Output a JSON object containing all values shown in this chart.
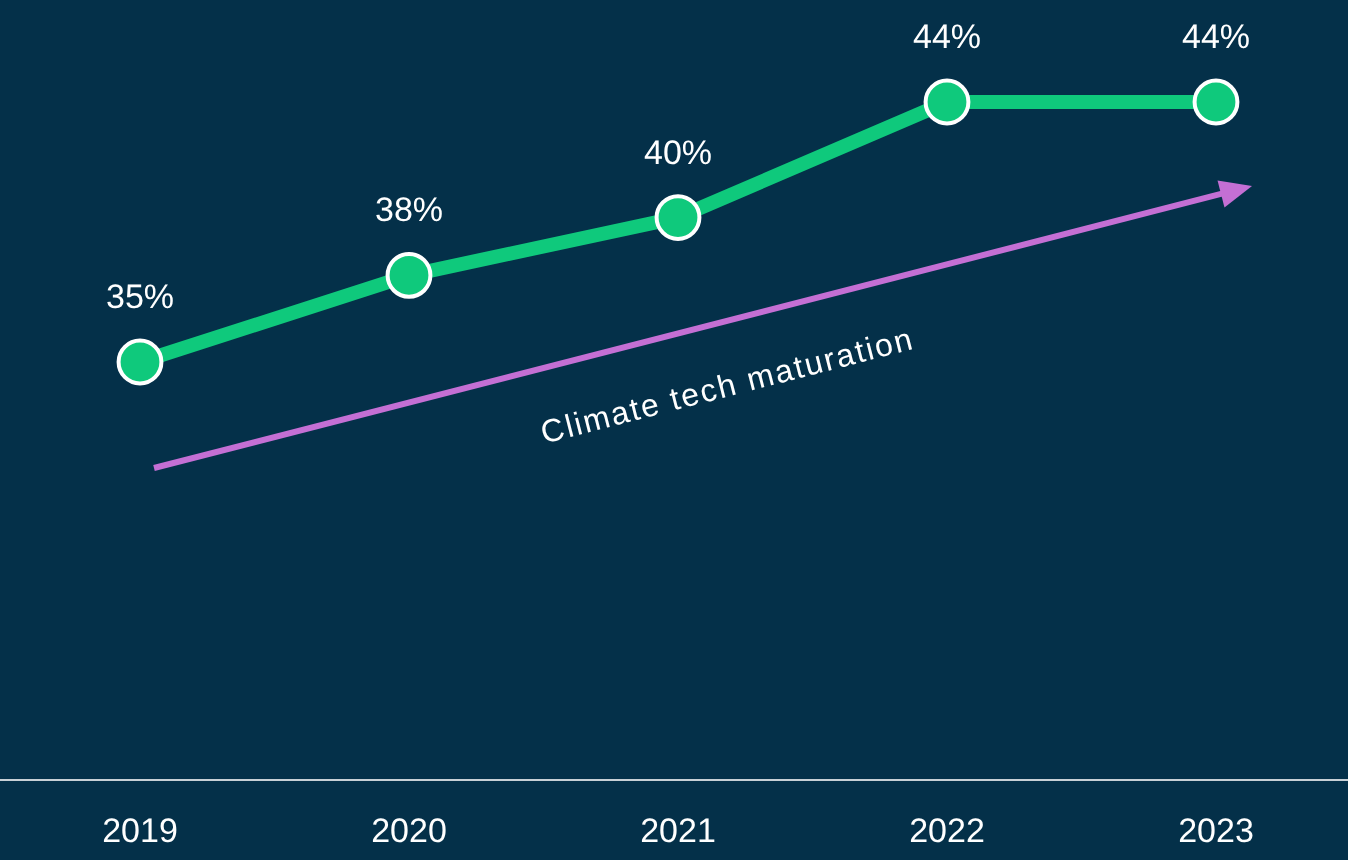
{
  "chart_data": {
    "type": "line",
    "categories": [
      "2019",
      "2020",
      "2021",
      "2022",
      "2023"
    ],
    "series": [
      {
        "color": "#0fc97c",
        "values": [
          35,
          38,
          40,
          44,
          44
        ],
        "value_labels": [
          "35%",
          "38%",
          "40%",
          "44%",
          "44%"
        ]
      }
    ],
    "tick_labels": "x",
    "marker": "circle",
    "line_style": "solid",
    "annotations": [
      "Climate tech maturation"
    ]
  }
}
